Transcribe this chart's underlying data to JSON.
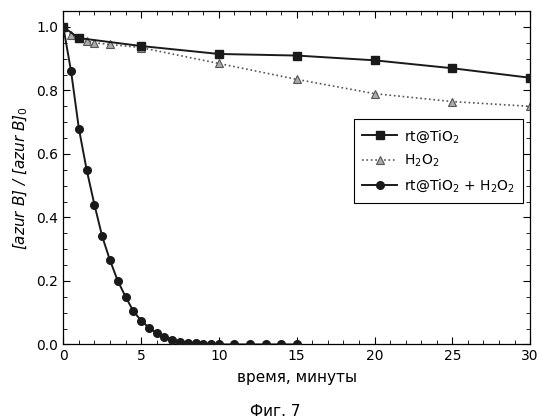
{
  "series1_label": "rt@TiO$_2$",
  "series2_label": "H$_2$O$_2$",
  "series3_label": "rt@TiO$_2$ + H$_2$O$_2$",
  "series1_x": [
    0,
    1,
    5,
    10,
    15,
    20,
    25,
    30
  ],
  "series1_y": [
    1.0,
    0.965,
    0.94,
    0.915,
    0.91,
    0.895,
    0.87,
    0.84
  ],
  "series2_x": [
    0,
    0.5,
    1,
    1.5,
    2,
    3,
    5,
    10,
    15,
    20,
    25,
    30
  ],
  "series2_y": [
    1.0,
    0.975,
    0.965,
    0.955,
    0.95,
    0.945,
    0.935,
    0.885,
    0.835,
    0.79,
    0.765,
    0.75
  ],
  "series3_x": [
    0,
    0.5,
    1,
    1.5,
    2,
    2.5,
    3,
    3.5,
    4,
    4.5,
    5,
    5.5,
    6,
    6.5,
    7,
    7.5,
    8,
    8.5,
    9,
    9.5,
    10,
    11,
    12,
    13,
    14,
    15
  ],
  "series3_y": [
    1.0,
    0.86,
    0.68,
    0.55,
    0.44,
    0.34,
    0.265,
    0.2,
    0.15,
    0.105,
    0.075,
    0.053,
    0.036,
    0.024,
    0.015,
    0.009,
    0.005,
    0.003,
    0.001,
    0.0005,
    0.0,
    0.0,
    0.0,
    0.0,
    0.0,
    0.0
  ],
  "xlabel": "время, минуты",
  "ylabel": "[azur B] / [azur B]$_0$",
  "title": "Фиг. 7",
  "xlim": [
    0,
    30
  ],
  "ylim": [
    0,
    1.05
  ],
  "xticks": [
    0,
    5,
    10,
    15,
    20,
    25,
    30
  ],
  "yticks": [
    0.0,
    0.2,
    0.4,
    0.6,
    0.8,
    1.0
  ],
  "color": "#1a1a1a",
  "bg_color": "#ffffff"
}
